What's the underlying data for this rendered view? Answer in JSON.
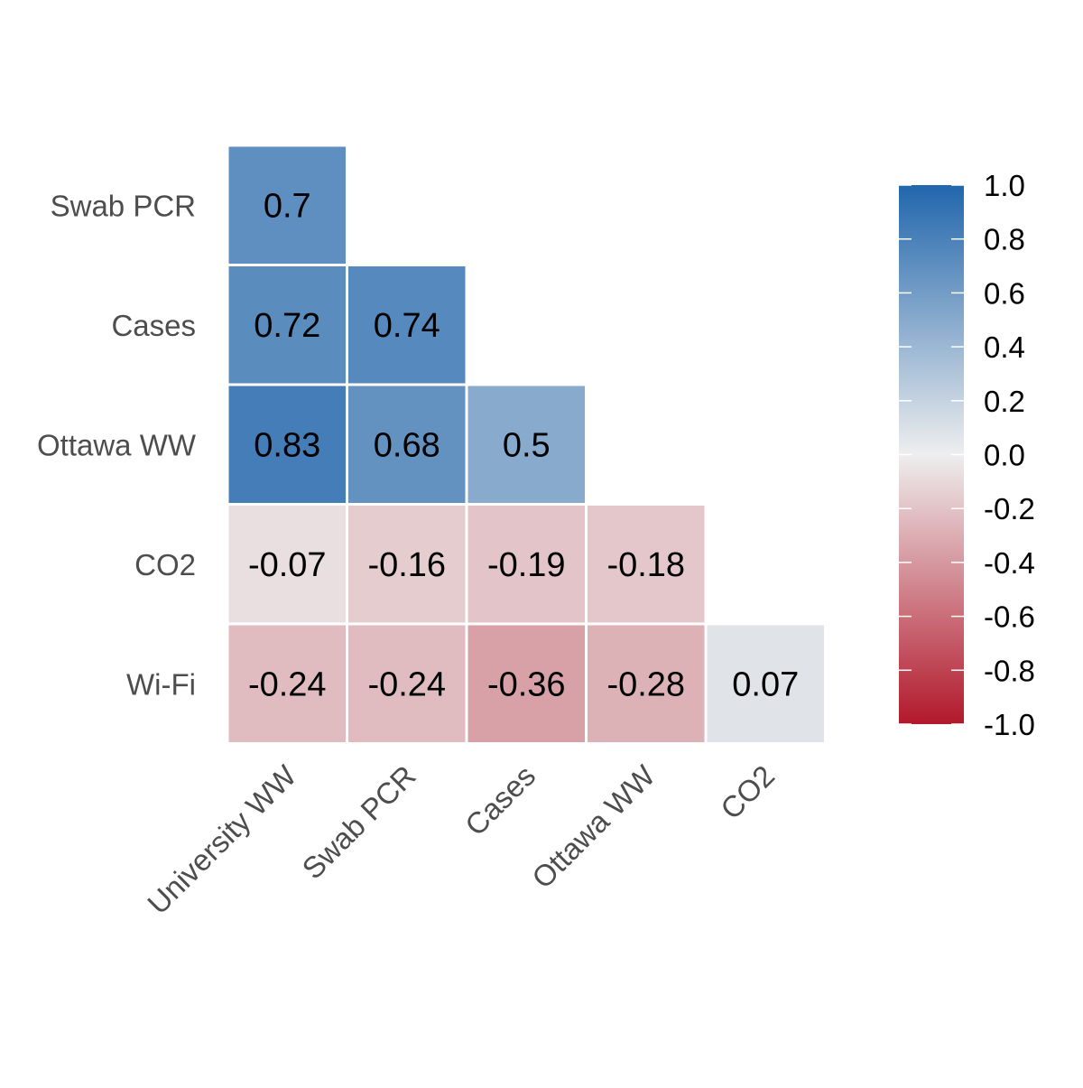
{
  "chart_data": {
    "type": "heatmap",
    "title": "",
    "x_categories": [
      "University WW",
      "Swab PCR",
      "Cases",
      "Ottawa WW",
      "CO2"
    ],
    "y_categories": [
      "Swab PCR",
      "Cases",
      "Ottawa WW",
      "CO2",
      "Wi-Fi"
    ],
    "cells": [
      {
        "x": "University WW",
        "y": "Swab PCR",
        "value": 0.7,
        "label": "0.7"
      },
      {
        "x": "University WW",
        "y": "Cases",
        "value": 0.72,
        "label": "0.72"
      },
      {
        "x": "Swab PCR",
        "y": "Cases",
        "value": 0.74,
        "label": "0.74"
      },
      {
        "x": "University WW",
        "y": "Ottawa WW",
        "value": 0.83,
        "label": "0.83"
      },
      {
        "x": "Swab PCR",
        "y": "Ottawa WW",
        "value": 0.68,
        "label": "0.68"
      },
      {
        "x": "Cases",
        "y": "Ottawa WW",
        "value": 0.5,
        "label": "0.5"
      },
      {
        "x": "University WW",
        "y": "CO2",
        "value": -0.07,
        "label": "-0.07"
      },
      {
        "x": "Swab PCR",
        "y": "CO2",
        "value": -0.16,
        "label": "-0.16"
      },
      {
        "x": "Cases",
        "y": "CO2",
        "value": -0.19,
        "label": "-0.19"
      },
      {
        "x": "Ottawa WW",
        "y": "CO2",
        "value": -0.18,
        "label": "-0.18"
      },
      {
        "x": "University WW",
        "y": "Wi-Fi",
        "value": -0.24,
        "label": "-0.24"
      },
      {
        "x": "Swab PCR",
        "y": "Wi-Fi",
        "value": -0.24,
        "label": "-0.24"
      },
      {
        "x": "Cases",
        "y": "Wi-Fi",
        "value": -0.36,
        "label": "-0.36"
      },
      {
        "x": "Ottawa WW",
        "y": "Wi-Fi",
        "value": -0.28,
        "label": "-0.28"
      },
      {
        "x": "CO2",
        "y": "Wi-Fi",
        "value": 0.07,
        "label": "0.07"
      }
    ],
    "colorbar": {
      "range": [
        -1.0,
        1.0
      ],
      "ticks": [
        "1.0",
        "0.8",
        "0.6",
        "0.4",
        "0.2",
        "0.0",
        "-0.2",
        "-0.4",
        "-0.6",
        "-0.8",
        "-1.0"
      ],
      "tick_values": [
        1.0,
        0.8,
        0.6,
        0.4,
        0.2,
        0.0,
        -0.2,
        -0.4,
        -0.6,
        -0.8,
        -1.0
      ],
      "colors": {
        "low": "#b2182b",
        "mid": "#eeeeee",
        "high": "#2166ac"
      }
    },
    "legend_position": "right",
    "grid": false
  }
}
